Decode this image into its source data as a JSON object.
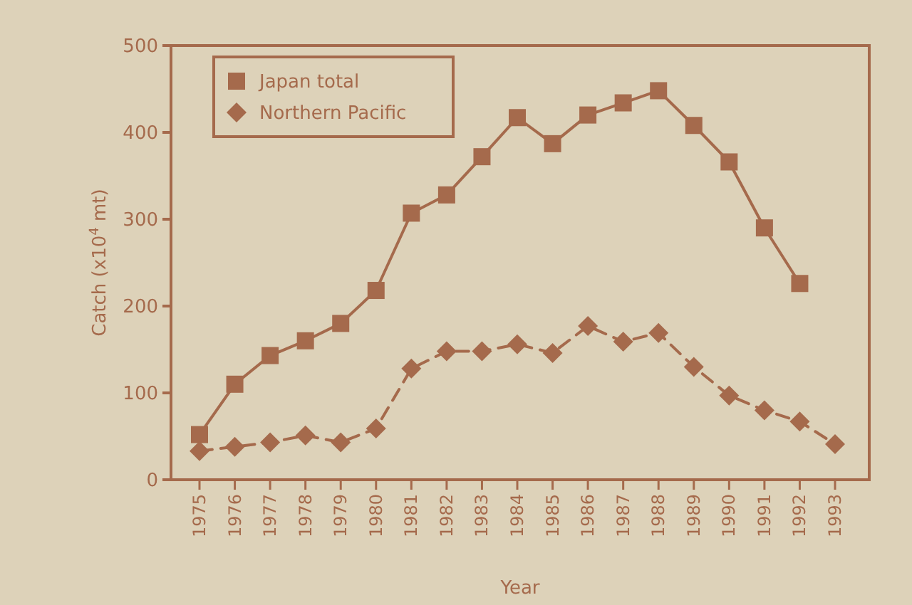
{
  "chart_data": {
    "type": "line",
    "xlabel": "Year",
    "ylabel": "Catch (x10$^{4}$ mt)",
    "categories": [
      "1975",
      "1976",
      "1977",
      "1978",
      "1979",
      "1980",
      "1981",
      "1982",
      "1983",
      "1984",
      "1985",
      "1986",
      "1987",
      "1988",
      "1989",
      "1990",
      "1991",
      "1992",
      "1993"
    ],
    "series": [
      {
        "name": "Japan total",
        "color": "#a56a4c",
        "marker": "square",
        "line_style": "solid",
        "values": [
          52,
          110,
          143,
          160,
          180,
          218,
          307,
          328,
          372,
          417,
          387,
          420,
          434,
          448,
          408,
          366,
          290,
          226,
          null
        ]
      },
      {
        "name": "Northern Pacific",
        "color": "#a56a4c",
        "marker": "diamond",
        "line_style": "dashed",
        "values": [
          33,
          38,
          43,
          51,
          43,
          59,
          128,
          148,
          148,
          156,
          146,
          177,
          159,
          169,
          130,
          97,
          80,
          67,
          41
        ]
      }
    ],
    "ylim": [
      0,
      500
    ],
    "yticks": [
      0,
      100,
      200,
      300,
      400,
      500
    ],
    "grid": false,
    "legend": "top left"
  }
}
